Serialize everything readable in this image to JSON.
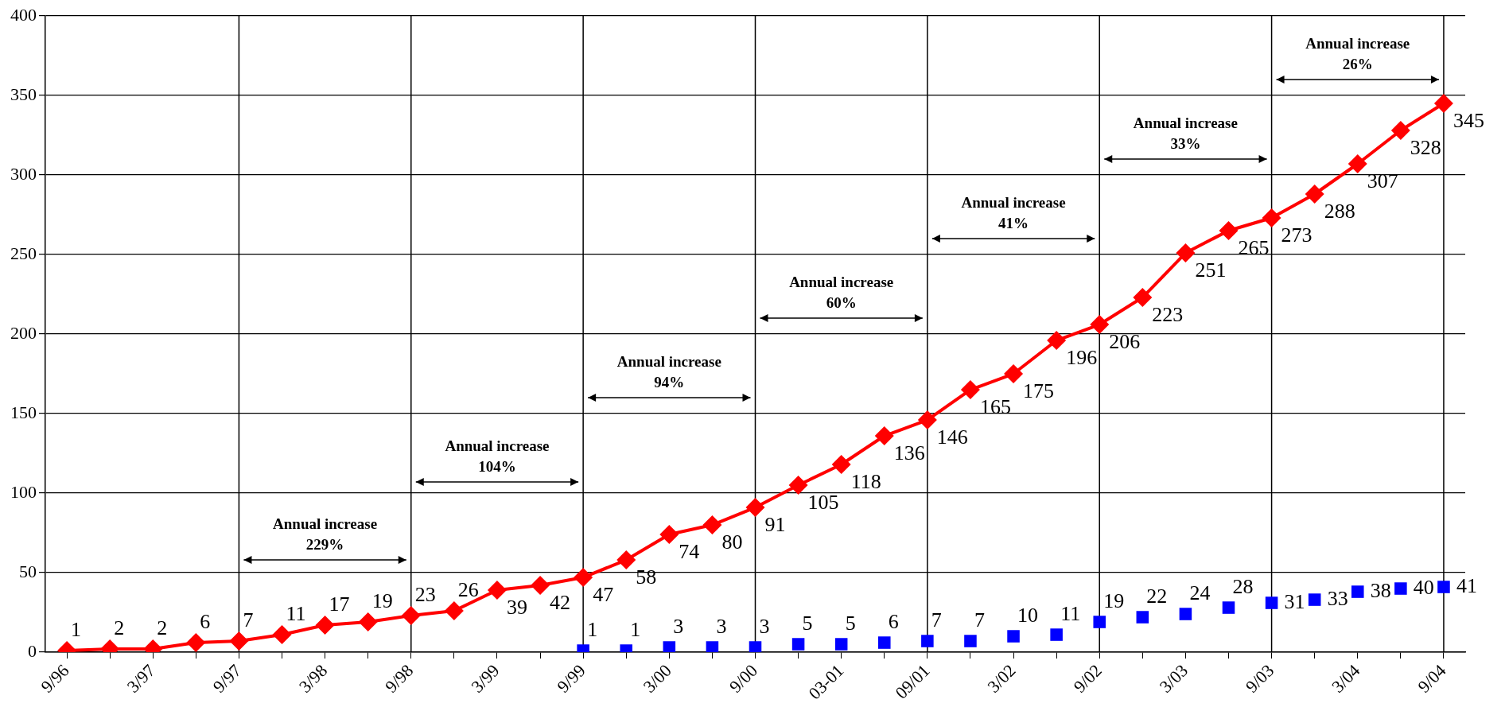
{
  "chart_data": {
    "type": "line",
    "categories": [
      "9/96",
      null,
      "3/97",
      null,
      "9/97",
      null,
      "3/98",
      null,
      "9/98",
      null,
      "3/99",
      null,
      "9/99",
      null,
      "3/00",
      null,
      "9/00",
      null,
      "03-01",
      null,
      "09/01",
      null,
      "3/02",
      null,
      "9/02",
      null,
      "3/03",
      null,
      "9/03",
      null,
      "3/04",
      null,
      "9/04"
    ],
    "series": [
      {
        "type": "line",
        "color": "#ff0000",
        "marker": "diamond",
        "values": [
          1,
          2,
          2,
          6,
          7,
          11,
          17,
          19,
          23,
          26,
          39,
          42,
          47,
          58,
          74,
          80,
          91,
          105,
          118,
          136,
          146,
          165,
          175,
          196,
          206,
          223,
          251,
          265,
          273,
          288,
          307,
          328,
          345
        ]
      },
      {
        "type": "scatter",
        "color": "#0000ff",
        "marker": "square",
        "values": [
          null,
          null,
          null,
          null,
          null,
          null,
          null,
          null,
          null,
          null,
          null,
          null,
          1,
          1,
          3,
          3,
          3,
          5,
          5,
          6,
          7,
          7,
          10,
          11,
          19,
          22,
          24,
          28,
          31,
          33,
          38,
          40,
          41
        ]
      }
    ],
    "ylim": [
      0,
      400
    ],
    "yticks": [
      0,
      50,
      100,
      150,
      200,
      250,
      300,
      350,
      400
    ],
    "grid": "y",
    "legend": false,
    "data_labels": true,
    "ref_lines": [
      {
        "axis": "x",
        "value": "9/97",
        "color": "#000000"
      },
      {
        "axis": "x",
        "value": "9/98",
        "color": "#000000"
      },
      {
        "axis": "x",
        "value": "9/99",
        "color": "#000000"
      },
      {
        "axis": "x",
        "value": "9/00",
        "color": "#000000"
      },
      {
        "axis": "x",
        "value": "09/01",
        "color": "#000000"
      },
      {
        "axis": "x",
        "value": "9/02",
        "color": "#000000"
      },
      {
        "axis": "x",
        "value": "9/03",
        "color": "#000000"
      },
      {
        "axis": "x",
        "value": "9/04",
        "color": "#000000"
      }
    ],
    "annotations": [
      {
        "text": "Annual increase\n229%",
        "x": "9/98",
        "y": 58
      },
      {
        "text": "Annual increase\n104%",
        "x": "9/99",
        "y": 107
      },
      {
        "text": "Annual increase\n94%",
        "x": "9/00",
        "y": 160
      },
      {
        "text": "Annual increase\n60%",
        "x": "09/01",
        "y": 210
      },
      {
        "text": "Annual increase\n41%",
        "x": "9/02",
        "y": 260
      },
      {
        "text": "Annual increase\n33%",
        "x": "9/03",
        "y": 310
      },
      {
        "text": "Annual increase\n26%",
        "x": "9/04",
        "y": 360
      }
    ]
  }
}
